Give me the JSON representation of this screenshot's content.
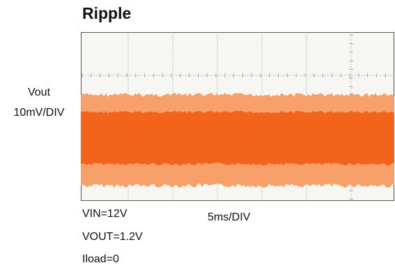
{
  "title": "Ripple",
  "channel": {
    "name": "Vout",
    "scale": "10mV/DIV"
  },
  "timebase": "5ms/DIV",
  "conditions": {
    "vin": "VIN=12V",
    "vout": "VOUT=1.2V",
    "iload": "Iload=0"
  },
  "colors": {
    "trace": "#f2631c",
    "trace_light": "#f7a06a",
    "screen": "#f6f6f3",
    "grid": "#9a9a92"
  },
  "chart_data": {
    "type": "line",
    "title": "Ripple",
    "xlabel": "5ms/DIV",
    "ylabel": "Vout 10mV/DIV",
    "series": [
      {
        "name": "Vout",
        "description_band": "noise band",
        "band_top_div": 0.55,
        "band_bottom_div": -1.55,
        "dense_top_div": 0.15,
        "dense_bottom_div": -1.05
      }
    ],
    "grid": true
  }
}
